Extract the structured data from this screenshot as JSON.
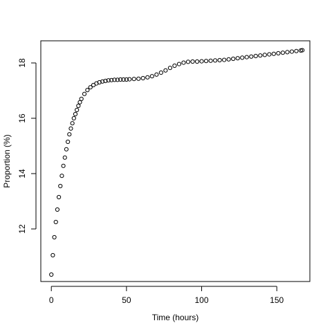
{
  "chart_data": {
    "type": "scatter",
    "title": "",
    "xlabel": "Time (hours)",
    "ylabel": "Proportion (%)",
    "xlim": [
      -7,
      172
    ],
    "ylim": [
      10.1,
      18.8
    ],
    "xticks": [
      0,
      50,
      100,
      150
    ],
    "yticks": [
      12,
      14,
      16,
      18
    ],
    "grid": false,
    "legend": "none",
    "marker": "open-circle",
    "color": "#000000",
    "series": [
      {
        "x": [
          0,
          1,
          2,
          3,
          4,
          5,
          6,
          7,
          8,
          9,
          10,
          11,
          12,
          13,
          14,
          15,
          16,
          17,
          18,
          19,
          20,
          22,
          24,
          26,
          28,
          30,
          32,
          34,
          36,
          38,
          40,
          42,
          44,
          46,
          48,
          50,
          52,
          55,
          58,
          61,
          64,
          67,
          70,
          73,
          76,
          79,
          82,
          85,
          88,
          91,
          94,
          97,
          100,
          103,
          106,
          109,
          112,
          115,
          118,
          121,
          124,
          127,
          130,
          133,
          136,
          139,
          142,
          145,
          148,
          151,
          154,
          157,
          160,
          163,
          166,
          167
        ],
        "y": [
          10.35,
          11.05,
          11.7,
          12.25,
          12.7,
          13.15,
          13.55,
          13.92,
          14.28,
          14.58,
          14.88,
          15.15,
          15.42,
          15.63,
          15.82,
          16.0,
          16.15,
          16.3,
          16.45,
          16.58,
          16.7,
          16.88,
          17.02,
          17.12,
          17.2,
          17.26,
          17.3,
          17.33,
          17.35,
          17.37,
          17.38,
          17.39,
          17.39,
          17.4,
          17.4,
          17.4,
          17.41,
          17.42,
          17.43,
          17.45,
          17.48,
          17.52,
          17.58,
          17.65,
          17.73,
          17.82,
          17.9,
          17.96,
          18.01,
          18.04,
          18.05,
          18.05,
          18.06,
          18.07,
          18.08,
          18.09,
          18.1,
          18.11,
          18.13,
          18.15,
          18.17,
          18.19,
          18.21,
          18.23,
          18.25,
          18.27,
          18.29,
          18.31,
          18.33,
          18.35,
          18.37,
          18.39,
          18.41,
          18.43,
          18.45,
          18.46
        ]
      }
    ]
  }
}
